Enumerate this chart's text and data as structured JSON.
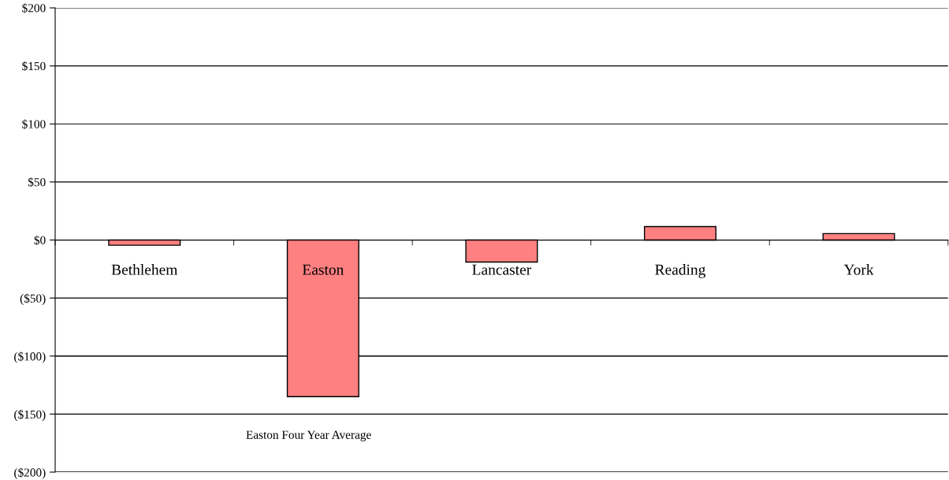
{
  "chart_data": {
    "type": "bar",
    "categories": [
      "Bethlehem",
      "Easton",
      "Lancaster",
      "Reading",
      "York"
    ],
    "values": [
      -4.5,
      -135,
      -19,
      11.5,
      5.5
    ],
    "color": "#ff8080",
    "ylim": [
      -200,
      200
    ],
    "yticks": [
      {
        "value": -200,
        "label": "($200)"
      },
      {
        "value": -150,
        "label": "($150)"
      },
      {
        "value": -100,
        "label": "($100)"
      },
      {
        "value": -50,
        "label": "($50)"
      },
      {
        "value": 0,
        "label": "$0"
      },
      {
        "value": 50,
        "label": "$50"
      },
      {
        "value": 100,
        "label": "$100"
      },
      {
        "value": 150,
        "label": "$150"
      },
      {
        "value": 200,
        "label": "$200"
      }
    ],
    "grid": "y",
    "legend": false,
    "annotations": [
      "Easton Four Year Average"
    ]
  }
}
